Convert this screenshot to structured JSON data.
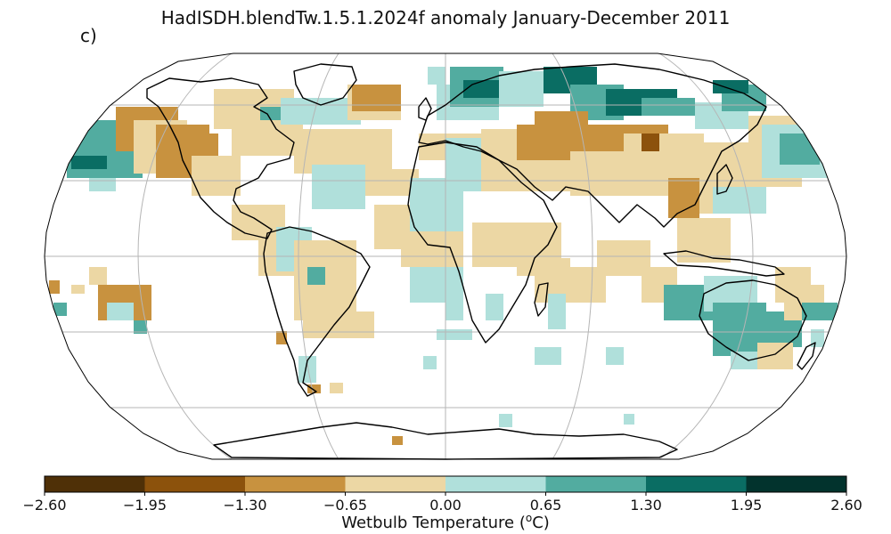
{
  "title": "HadISDH.blendTw.1.5.1.2024f anomaly January-December 2011",
  "panel_label": "c)",
  "colorbar": {
    "label_prefix": "Wetbulb Temperature (",
    "label_sup": "o",
    "label_suffix": "C)",
    "ticks": [
      "−2.60",
      "−1.95",
      "−1.30",
      "−0.65",
      "0.00",
      "0.65",
      "1.30",
      "1.95",
      "2.60"
    ],
    "colors": [
      "#4f3007",
      "#8c520c",
      "#c8923f",
      "#ecd7a4",
      "#b0e0db",
      "#52aca0",
      "#0a6d63",
      "#02332d"
    ]
  },
  "map": {
    "projection": "Robinson",
    "gridlines": true,
    "coastlines": true,
    "grid_color": "#b5b5b5",
    "coast_color": "#000000"
  }
}
